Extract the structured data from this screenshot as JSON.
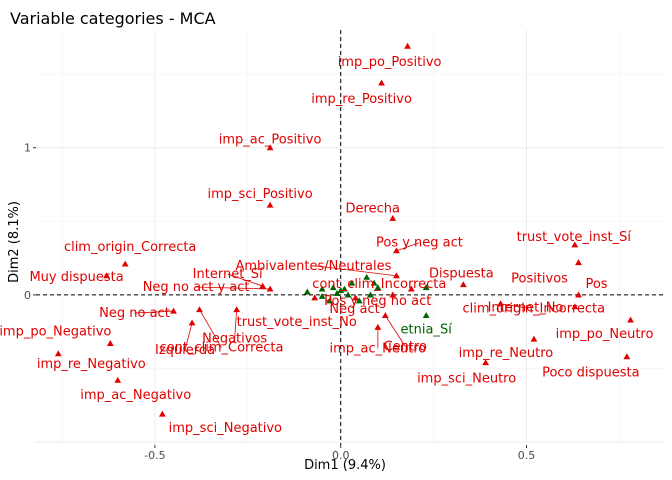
{
  "chart_data": {
    "type": "scatter",
    "title": "Variable categories - MCA",
    "xlabel": "Dim1 (9.4%)",
    "ylabel": "Dim2 (8.1%)",
    "xlim": [
      -0.82,
      0.87
    ],
    "ylim": [
      -1.02,
      1.8
    ],
    "x_ticks": [
      {
        "value": -0.5,
        "label": "-0.5"
      },
      {
        "value": 0.0,
        "label": "0.0"
      },
      {
        "value": 0.5,
        "label": "0.5"
      }
    ],
    "y_ticks": [
      {
        "value": 0,
        "label": "0"
      },
      {
        "value": 1,
        "label": "1"
      }
    ],
    "grid": true,
    "zero_lines": true,
    "colors": {
      "active": "#e00000",
      "supplementary": "#006400"
    },
    "points": [
      {
        "name": "imp_po_Positivo",
        "x": 0.18,
        "y": 1.69,
        "label": "imp_po_Positivo",
        "group": "active"
      },
      {
        "name": "imp_re_Positivo",
        "x": 0.11,
        "y": 1.44,
        "label": "imp_re_Positivo",
        "group": "active"
      },
      {
        "name": "imp_ac_Positivo",
        "x": -0.19,
        "y": 1.0,
        "label": "imp_ac_Positivo",
        "group": "active"
      },
      {
        "name": "imp_sci_Positivo",
        "x": -0.19,
        "y": 0.61,
        "label": "imp_sci_Positivo",
        "group": "active"
      },
      {
        "name": "Derecha",
        "x": 0.14,
        "y": 0.52,
        "label": "Derecha",
        "group": "active"
      },
      {
        "name": "Pos y neg act",
        "x": 0.15,
        "y": 0.3,
        "label": "Pos y neg act",
        "group": "active"
      },
      {
        "name": "trust_vote_inst_Sí",
        "x": 0.63,
        "y": 0.34,
        "label": "trust_vote_inst_Sí",
        "group": "active"
      },
      {
        "name": "Positivos",
        "x": 0.64,
        "y": 0.22,
        "label": "Positivos",
        "group": "active"
      },
      {
        "name": "Pos",
        "x": 0.64,
        "y": 0.0,
        "label": "Pos",
        "group": "active"
      },
      {
        "name": "Dispuesta",
        "x": 0.33,
        "y": 0.07,
        "label": "Dispuesta",
        "group": "active"
      },
      {
        "name": "Ambivalentes/Neutrales",
        "x": 0.15,
        "y": 0.13,
        "label": "Ambivalentes/Neutrales",
        "group": "active"
      },
      {
        "name": "cont_clim_Incorrecta",
        "x": 0.19,
        "y": 0.04,
        "label": "cont_clim_Incorrecta",
        "group": "active"
      },
      {
        "name": "Internet_Sí",
        "x": -0.21,
        "y": 0.06,
        "label": "Internet_Sí",
        "group": "active"
      },
      {
        "name": "clim_origin_Correcta",
        "x": -0.58,
        "y": 0.21,
        "label": "clim_origin_Correcta",
        "group": "active"
      },
      {
        "name": "Muy dispuesta",
        "x": -0.63,
        "y": 0.13,
        "label": "Muy dispuesta",
        "group": "active"
      },
      {
        "name": "Neg no act y act",
        "x": -0.19,
        "y": 0.04,
        "label": "Neg no act y act",
        "group": "active"
      },
      {
        "name": "Neg no act",
        "x": -0.45,
        "y": -0.11,
        "label": "Neg no act",
        "group": "active"
      },
      {
        "name": "cont_clim_Correcta",
        "x": -0.38,
        "y": -0.1,
        "label": "cont_clim_Correcta",
        "group": "active"
      },
      {
        "name": "Izquierda",
        "x": -0.4,
        "y": -0.19,
        "label": "Izquierda",
        "group": "active"
      },
      {
        "name": "Negativos",
        "x": -0.28,
        "y": -0.1,
        "label": "Negativos",
        "group": "active"
      },
      {
        "name": "trust_vote_inst_No",
        "x": -0.07,
        "y": -0.02,
        "label": "trust_vote_inst_No",
        "group": "active"
      },
      {
        "name": "Neg act",
        "x": 0.04,
        "y": -0.02,
        "label": "Neg act",
        "group": "active"
      },
      {
        "name": "Pos y neg no act",
        "x": 0.14,
        "y": 0.0,
        "label": "Pos y neg no act",
        "group": "active"
      },
      {
        "name": "Internet_No",
        "x": 0.43,
        "y": -0.06,
        "label": "Internet_No",
        "group": "active"
      },
      {
        "name": "Centro",
        "x": 0.12,
        "y": -0.14,
        "label": "Centro",
        "group": "active"
      },
      {
        "name": "clim_origin_Incorrecta",
        "x": 0.63,
        "y": -0.08,
        "label": "clim_origin_Incorrecta",
        "group": "active"
      },
      {
        "name": "imp_ac_Neutro",
        "x": 0.1,
        "y": -0.22,
        "label": "imp_ac_Neutro",
        "group": "active"
      },
      {
        "name": "imp_re_Neutro",
        "x": 0.52,
        "y": -0.3,
        "label": "imp_re_Neutro",
        "group": "active"
      },
      {
        "name": "imp_po_Neutro",
        "x": 0.78,
        "y": -0.17,
        "label": "imp_po_Neutro",
        "group": "active"
      },
      {
        "name": "imp_sci_Neutro",
        "x": 0.39,
        "y": -0.46,
        "label": "imp_sci_Neutro",
        "group": "active"
      },
      {
        "name": "Poco dispuesta",
        "x": 0.77,
        "y": -0.42,
        "label": "Poco dispuesta",
        "group": "active"
      },
      {
        "name": "imp_po_Negativo",
        "x": -0.62,
        "y": -0.33,
        "label": "imp_po_Negativo",
        "group": "active"
      },
      {
        "name": "imp_re_Negativo",
        "x": -0.76,
        "y": -0.4,
        "label": "imp_re_Negativo",
        "group": "active"
      },
      {
        "name": "imp_ac_Negativo",
        "x": -0.6,
        "y": -0.58,
        "label": "imp_ac_Negativo",
        "group": "active"
      },
      {
        "name": "imp_sci_Negativo",
        "x": -0.48,
        "y": -0.81,
        "label": "imp_sci_Negativo",
        "group": "active"
      },
      {
        "name": "etnia_Sí",
        "x": 0.23,
        "y": -0.14,
        "label": "etnia_Sí",
        "group": "supplementary"
      },
      {
        "name": "supp-1",
        "x": -0.09,
        "y": 0.02,
        "label": "",
        "group": "supplementary"
      },
      {
        "name": "supp-2",
        "x": -0.05,
        "y": 0.04,
        "label": "",
        "group": "supplementary"
      },
      {
        "name": "supp-3",
        "x": -0.02,
        "y": 0.05,
        "label": "",
        "group": "supplementary"
      },
      {
        "name": "supp-4",
        "x": 0.0,
        "y": 0.03,
        "label": "",
        "group": "supplementary"
      },
      {
        "name": "supp-5",
        "x": 0.01,
        "y": 0.04,
        "label": "",
        "group": "supplementary"
      },
      {
        "name": "supp-6",
        "x": 0.02,
        "y": 0.0,
        "label": "",
        "group": "supplementary"
      },
      {
        "name": "supp-7",
        "x": -0.01,
        "y": 0.01,
        "label": "",
        "group": "supplementary"
      },
      {
        "name": "supp-8",
        "x": -0.03,
        "y": -0.04,
        "label": "",
        "group": "supplementary"
      },
      {
        "name": "supp-9",
        "x": 0.07,
        "y": 0.12,
        "label": "",
        "group": "supplementary"
      },
      {
        "name": "supp-10",
        "x": 0.09,
        "y": 0.08,
        "label": "",
        "group": "supplementary"
      },
      {
        "name": "supp-11",
        "x": 0.1,
        "y": 0.05,
        "label": "",
        "group": "supplementary"
      },
      {
        "name": "supp-12",
        "x": 0.08,
        "y": 0.0,
        "label": "",
        "group": "supplementary"
      },
      {
        "name": "supp-13",
        "x": 0.05,
        "y": -0.04,
        "label": "",
        "group": "supplementary"
      },
      {
        "name": "supp-14",
        "x": 0.23,
        "y": 0.05,
        "label": "",
        "group": "supplementary"
      },
      {
        "name": "supp-15",
        "x": -0.05,
        "y": -0.01,
        "label": "",
        "group": "supplementary"
      },
      {
        "name": "supp-16",
        "x": 0.03,
        "y": 0.08,
        "label": "",
        "group": "supplementary"
      }
    ]
  }
}
